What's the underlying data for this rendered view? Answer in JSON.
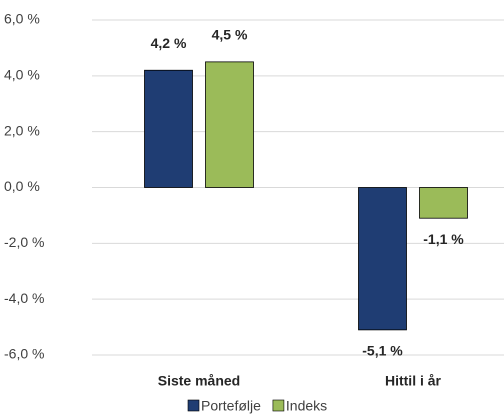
{
  "chart_data": {
    "type": "bar",
    "categories": [
      "Siste måned",
      "Hittil i år"
    ],
    "series": [
      {
        "name": "Portefølje",
        "color": "#1f3d73",
        "values": [
          4.2,
          -5.1
        ],
        "value_labels": [
          "4,2 %",
          "-5,1 %"
        ]
      },
      {
        "name": "Indeks",
        "color": "#9bbb59",
        "values": [
          4.5,
          -1.1
        ],
        "value_labels": [
          "4,5 %",
          "-1,1 %"
        ]
      }
    ],
    "ylim": [
      -6,
      6
    ],
    "yticks": [
      {
        "value": -6,
        "label": "-6,0 %"
      },
      {
        "value": -4,
        "label": "-4,0 %"
      },
      {
        "value": -2,
        "label": "-2,0 %"
      },
      {
        "value": 0,
        "label": "0,0 %"
      },
      {
        "value": 2,
        "label": "2,0 %"
      },
      {
        "value": 4,
        "label": "4,0 %"
      },
      {
        "value": 6,
        "label": "6,0 %"
      }
    ],
    "grid": true,
    "legend": "bottom"
  }
}
